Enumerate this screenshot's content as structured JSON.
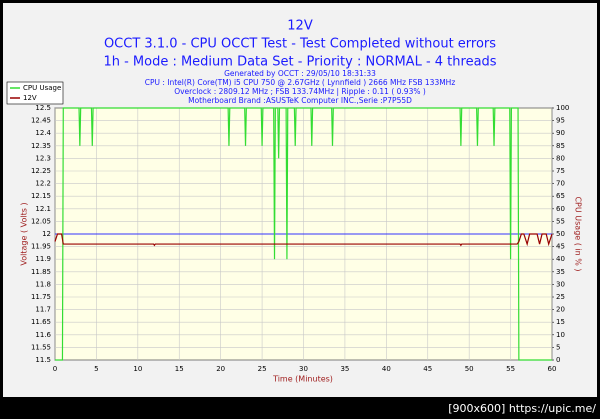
{
  "chart_data": {
    "type": "line",
    "title": "12V",
    "subtitle": [
      "OCCT 3.1.0 - CPU OCCT Test - Test Completed without errors",
      "1h - Mode : Medium Data Set - Priority : NORMAL - 4 threads"
    ],
    "info": [
      "Generated by OCCT : 29/05/10 18:31:33",
      "CPU : Intel(R) Core(TM) i5 CPU 750 @ 2.67GHz ( Lynnfield ) 2666 MHz FSB 133MHz",
      "Overclock : 2809.12 MHz ; FSB 133.74MHz | Ripple : 0.11 ( 0.93% )",
      "Motherboard Brand :ASUSTeK Computer INC.,Serie :P7P55D"
    ],
    "xlabel": "Time (Minutes)",
    "ylabel": "Voltage ( Volts )",
    "y2label": "CPU Usage ( in % )",
    "xlim": [
      0,
      60
    ],
    "xticks": [
      0,
      5,
      10,
      15,
      20,
      25,
      30,
      35,
      40,
      45,
      50,
      55,
      60
    ],
    "ylim": [
      11.5,
      12.5
    ],
    "yticks": [
      11.5,
      11.55,
      11.6,
      11.65,
      11.7,
      11.75,
      11.8,
      11.85,
      11.9,
      11.95,
      12,
      12.05,
      12.1,
      12.15,
      12.2,
      12.25,
      12.3,
      12.35,
      12.4,
      12.45,
      12.5
    ],
    "y2lim": [
      0,
      100
    ],
    "y2ticks": [
      0,
      5,
      10,
      15,
      20,
      25,
      30,
      35,
      40,
      45,
      50,
      55,
      60,
      65,
      70,
      75,
      80,
      85,
      90,
      95,
      100
    ],
    "grid": true,
    "reference_line": 12,
    "reference_color": "#3333ff",
    "legend": "top-left",
    "series": [
      {
        "name": "CPU Usage",
        "color": "#33dd33",
        "axis": "y2",
        "x": [
          0,
          0.9,
          1,
          2.9,
          3,
          3.1,
          4.4,
          4.5,
          4.6,
          20.9,
          21,
          21.1,
          22.9,
          23,
          23.1,
          24.9,
          25,
          25.1,
          26.4,
          26.5,
          26.6,
          26.9,
          27,
          27.1,
          27.9,
          28,
          28.1,
          28.9,
          29,
          29.1,
          30.9,
          31,
          31.1,
          33.4,
          33.5,
          33.6,
          48.9,
          49,
          49.1,
          50.9,
          51,
          51.1,
          52.9,
          53,
          53.1,
          54.9,
          55,
          55.1,
          55.9,
          56,
          60
        ],
        "values": [
          0,
          0,
          100,
          100,
          85,
          100,
          100,
          85,
          100,
          100,
          85,
          100,
          100,
          85,
          100,
          100,
          85,
          100,
          100,
          40,
          100,
          100,
          80,
          100,
          100,
          40,
          100,
          100,
          85,
          100,
          100,
          85,
          100,
          100,
          85,
          100,
          100,
          85,
          100,
          100,
          85,
          100,
          100,
          85,
          100,
          100,
          40,
          100,
          100,
          0,
          0
        ]
      },
      {
        "name": "12V",
        "color": "#990000",
        "x": [
          0,
          0.3,
          0.5,
          0.8,
          1,
          11.9,
          12,
          12.1,
          48.9,
          49,
          49.1,
          55.8,
          56,
          56.3,
          56.6,
          57,
          57.3,
          58.2,
          58.5,
          58.8,
          59.3,
          59.6,
          60
        ],
        "values": [
          11.97,
          12,
          12,
          12,
          11.96,
          11.96,
          11.955,
          11.96,
          11.96,
          11.955,
          11.96,
          11.96,
          11.97,
          12,
          12,
          11.96,
          12,
          12,
          11.96,
          12,
          12,
          11.96,
          12
        ]
      }
    ],
    "watermark": "[900x600] https://upic.me/"
  }
}
